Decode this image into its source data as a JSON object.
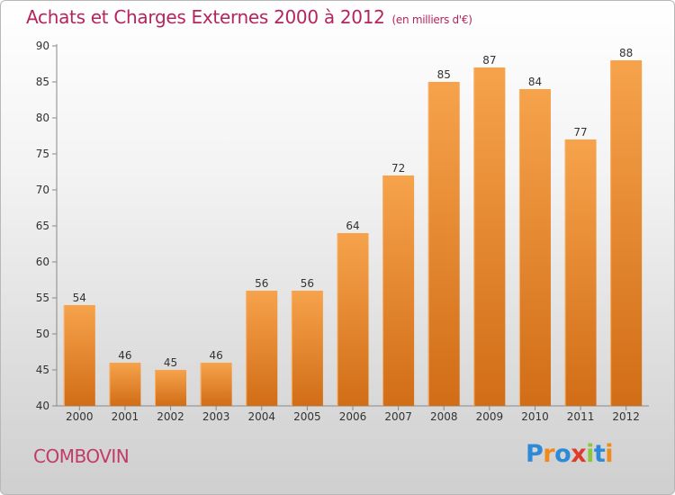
{
  "chart_data": {
    "type": "bar",
    "title": "Achats et Charges Externes 2000 à 2012",
    "subtitle": "(en milliers d'€)",
    "categories": [
      "2000",
      "2001",
      "2002",
      "2003",
      "2004",
      "2005",
      "2006",
      "2007",
      "2008",
      "2009",
      "2010",
      "2011",
      "2012"
    ],
    "values": [
      54,
      46,
      45,
      46,
      56,
      56,
      64,
      72,
      85,
      87,
      84,
      77,
      88
    ],
    "ylim": [
      40,
      90
    ],
    "yticks": [
      40,
      45,
      50,
      55,
      60,
      65,
      70,
      75,
      80,
      85,
      90
    ],
    "grid": false,
    "bar_color_top": "#f6a34c",
    "bar_color_bottom": "#d16d16"
  },
  "footer": {
    "commune": "COMBOVIN",
    "logo_letters": [
      {
        "char": "P",
        "color": "#2d8ad8"
      },
      {
        "char": "r",
        "color": "#f08a1c"
      },
      {
        "char": "o",
        "color": "#2d8ad8"
      },
      {
        "char": "x",
        "color": "#e03a2c"
      },
      {
        "char": "i",
        "color": "#8cc63e"
      },
      {
        "char": "t",
        "color": "#2d8ad8"
      },
      {
        "char": "i",
        "color": "#f08a1c"
      }
    ]
  },
  "colors": {
    "title": "#b5245e",
    "commune": "#c23a6a",
    "axis_text": "#333333"
  }
}
